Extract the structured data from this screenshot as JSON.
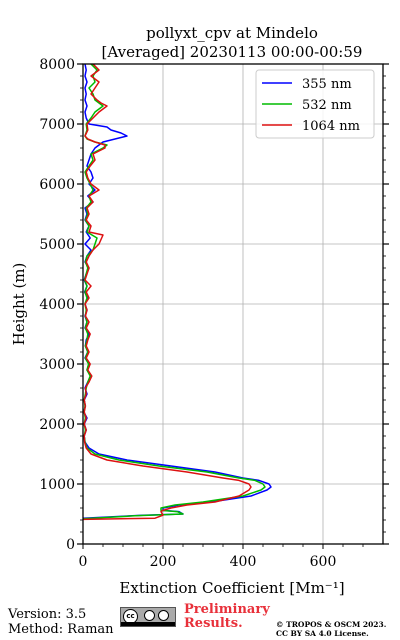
{
  "chart_data": {
    "type": "line",
    "title": "pollyxt_cpv at Mindelo",
    "subtitle": "[Averaged] 20230113 00:00-00:59",
    "xlabel": "Extinction Coefficient [Mm⁻¹]",
    "ylabel": "Height (m)",
    "xlim": [
      0,
      750
    ],
    "ylim": [
      0,
      8000
    ],
    "xticks": [
      0,
      200,
      400,
      600
    ],
    "yticks": [
      0,
      1000,
      2000,
      3000,
      4000,
      5000,
      6000,
      7000,
      8000
    ],
    "grid": true,
    "legend_position": "top-right",
    "series": [
      {
        "name": "355 nm",
        "color": "#0000ff",
        "points": [
          [
            0,
            430
          ],
          [
            150,
            480
          ],
          [
            250,
            500
          ],
          [
            240,
            540
          ],
          [
            200,
            560
          ],
          [
            200,
            600
          ],
          [
            240,
            650
          ],
          [
            320,
            700
          ],
          [
            420,
            800
          ],
          [
            460,
            900
          ],
          [
            470,
            950
          ],
          [
            465,
            1000
          ],
          [
            440,
            1060
          ],
          [
            400,
            1100
          ],
          [
            330,
            1200
          ],
          [
            220,
            1300
          ],
          [
            110,
            1400
          ],
          [
            40,
            1500
          ],
          [
            15,
            1600
          ],
          [
            5,
            1700
          ],
          [
            3,
            1800
          ],
          [
            8,
            1900
          ],
          [
            3,
            2000
          ],
          [
            10,
            2100
          ],
          [
            2,
            2200
          ],
          [
            6,
            2300
          ],
          [
            3,
            2400
          ],
          [
            10,
            2500
          ],
          [
            5,
            2600
          ],
          [
            12,
            2700
          ],
          [
            20,
            2800
          ],
          [
            10,
            2900
          ],
          [
            15,
            3000
          ],
          [
            5,
            3100
          ],
          [
            12,
            3200
          ],
          [
            6,
            3300
          ],
          [
            8,
            3400
          ],
          [
            15,
            3500
          ],
          [
            5,
            3600
          ],
          [
            10,
            3700
          ],
          [
            5,
            3800
          ],
          [
            10,
            3900
          ],
          [
            5,
            4000
          ],
          [
            12,
            4100
          ],
          [
            4,
            4200
          ],
          [
            10,
            4300
          ],
          [
            3,
            4400
          ],
          [
            8,
            4500
          ],
          [
            15,
            4600
          ],
          [
            5,
            4700
          ],
          [
            10,
            4800
          ],
          [
            20,
            4900
          ],
          [
            5,
            5000
          ],
          [
            18,
            5100
          ],
          [
            8,
            5200
          ],
          [
            15,
            5300
          ],
          [
            5,
            5400
          ],
          [
            10,
            5500
          ],
          [
            5,
            5600
          ],
          [
            25,
            5700
          ],
          [
            12,
            5800
          ],
          [
            30,
            5900
          ],
          [
            15,
            6000
          ],
          [
            25,
            6100
          ],
          [
            20,
            6200
          ],
          [
            10,
            6300
          ],
          [
            15,
            6400
          ],
          [
            20,
            6500
          ],
          [
            30,
            6600
          ],
          [
            50,
            6700
          ],
          [
            110,
            6800
          ],
          [
            95,
            6850
          ],
          [
            70,
            6900
          ],
          [
            60,
            6950
          ],
          [
            15,
            7000
          ],
          [
            8,
            7100
          ],
          [
            5,
            7200
          ],
          [
            10,
            7300
          ],
          [
            5,
            7400
          ],
          [
            8,
            7500
          ],
          [
            5,
            7600
          ],
          [
            10,
            7700
          ],
          [
            5,
            7800
          ],
          [
            8,
            7900
          ],
          [
            5,
            8000
          ]
        ]
      },
      {
        "name": "532 nm",
        "color": "#00bb00",
        "points": [
          [
            0,
            420
          ],
          [
            130,
            470
          ],
          [
            250,
            500
          ],
          [
            235,
            540
          ],
          [
            195,
            560
          ],
          [
            195,
            600
          ],
          [
            230,
            650
          ],
          [
            300,
            700
          ],
          [
            400,
            800
          ],
          [
            445,
            900
          ],
          [
            455,
            950
          ],
          [
            450,
            1000
          ],
          [
            430,
            1060
          ],
          [
            390,
            1100
          ],
          [
            310,
            1200
          ],
          [
            190,
            1300
          ],
          [
            90,
            1400
          ],
          [
            30,
            1500
          ],
          [
            10,
            1600
          ],
          [
            5,
            1700
          ],
          [
            3,
            1800
          ],
          [
            6,
            1900
          ],
          [
            3,
            2000
          ],
          [
            6,
            2100
          ],
          [
            3,
            2200
          ],
          [
            5,
            2300
          ],
          [
            3,
            2400
          ],
          [
            6,
            2500
          ],
          [
            8,
            2600
          ],
          [
            12,
            2700
          ],
          [
            18,
            2800
          ],
          [
            10,
            2900
          ],
          [
            14,
            3000
          ],
          [
            6,
            3100
          ],
          [
            12,
            3200
          ],
          [
            6,
            3300
          ],
          [
            10,
            3400
          ],
          [
            12,
            3500
          ],
          [
            6,
            3600
          ],
          [
            10,
            3700
          ],
          [
            6,
            3800
          ],
          [
            8,
            3900
          ],
          [
            5,
            4000
          ],
          [
            10,
            4100
          ],
          [
            5,
            4200
          ],
          [
            10,
            4300
          ],
          [
            4,
            4400
          ],
          [
            8,
            4500
          ],
          [
            12,
            4600
          ],
          [
            6,
            4700
          ],
          [
            10,
            4800
          ],
          [
            25,
            4900
          ],
          [
            30,
            5000
          ],
          [
            35,
            5100
          ],
          [
            10,
            5200
          ],
          [
            15,
            5300
          ],
          [
            6,
            5400
          ],
          [
            12,
            5500
          ],
          [
            8,
            5600
          ],
          [
            20,
            5700
          ],
          [
            15,
            5800
          ],
          [
            25,
            5900
          ],
          [
            18,
            6000
          ],
          [
            10,
            6100
          ],
          [
            5,
            6200
          ],
          [
            15,
            6300
          ],
          [
            25,
            6400
          ],
          [
            20,
            6500
          ],
          [
            50,
            6600
          ],
          [
            60,
            6650
          ],
          [
            30,
            6700
          ],
          [
            10,
            6750
          ],
          [
            5,
            6800
          ],
          [
            10,
            6900
          ],
          [
            8,
            7000
          ],
          [
            20,
            7100
          ],
          [
            30,
            7200
          ],
          [
            50,
            7300
          ],
          [
            40,
            7350
          ],
          [
            30,
            7400
          ],
          [
            25,
            7500
          ],
          [
            15,
            7600
          ],
          [
            30,
            7700
          ],
          [
            25,
            7800
          ],
          [
            35,
            7900
          ],
          [
            20,
            8000
          ]
        ]
      },
      {
        "name": "1064 nm",
        "color": "#dd1111",
        "points": [
          [
            0,
            410
          ],
          [
            180,
            430
          ],
          [
            200,
            480
          ],
          [
            195,
            540
          ],
          [
            200,
            560
          ],
          [
            220,
            600
          ],
          [
            260,
            650
          ],
          [
            330,
            700
          ],
          [
            390,
            800
          ],
          [
            415,
            900
          ],
          [
            420,
            950
          ],
          [
            415,
            1000
          ],
          [
            390,
            1060
          ],
          [
            350,
            1100
          ],
          [
            260,
            1200
          ],
          [
            150,
            1300
          ],
          [
            60,
            1400
          ],
          [
            20,
            1500
          ],
          [
            8,
            1600
          ],
          [
            4,
            1700
          ],
          [
            3,
            1800
          ],
          [
            8,
            1900
          ],
          [
            3,
            2000
          ],
          [
            8,
            2100
          ],
          [
            3,
            2200
          ],
          [
            6,
            2300
          ],
          [
            3,
            2400
          ],
          [
            8,
            2500
          ],
          [
            6,
            2600
          ],
          [
            15,
            2700
          ],
          [
            22,
            2800
          ],
          [
            12,
            2900
          ],
          [
            18,
            3000
          ],
          [
            8,
            3100
          ],
          [
            15,
            3200
          ],
          [
            8,
            3300
          ],
          [
            12,
            3400
          ],
          [
            18,
            3500
          ],
          [
            8,
            3600
          ],
          [
            15,
            3700
          ],
          [
            6,
            3800
          ],
          [
            10,
            3900
          ],
          [
            5,
            4000
          ],
          [
            15,
            4100
          ],
          [
            8,
            4200
          ],
          [
            20,
            4300
          ],
          [
            5,
            4400
          ],
          [
            10,
            4500
          ],
          [
            15,
            4600
          ],
          [
            8,
            4700
          ],
          [
            15,
            4800
          ],
          [
            25,
            4900
          ],
          [
            40,
            5000
          ],
          [
            50,
            5150
          ],
          [
            15,
            5200
          ],
          [
            20,
            5300
          ],
          [
            8,
            5400
          ],
          [
            15,
            5500
          ],
          [
            10,
            5600
          ],
          [
            25,
            5700
          ],
          [
            15,
            5800
          ],
          [
            40,
            5900
          ],
          [
            20,
            6000
          ],
          [
            12,
            6100
          ],
          [
            8,
            6200
          ],
          [
            18,
            6300
          ],
          [
            30,
            6400
          ],
          [
            25,
            6500
          ],
          [
            55,
            6600
          ],
          [
            55,
            6650
          ],
          [
            30,
            6700
          ],
          [
            12,
            6750
          ],
          [
            5,
            6800
          ],
          [
            12,
            6900
          ],
          [
            10,
            7000
          ],
          [
            25,
            7100
          ],
          [
            40,
            7200
          ],
          [
            60,
            7300
          ],
          [
            45,
            7350
          ],
          [
            35,
            7400
          ],
          [
            20,
            7500
          ],
          [
            30,
            7600
          ],
          [
            40,
            7700
          ],
          [
            20,
            7800
          ],
          [
            40,
            7900
          ],
          [
            25,
            8000
          ]
        ]
      }
    ]
  },
  "footer": {
    "version": "Version: 3.5",
    "method": "Method: Raman",
    "preliminary_line1": "Preliminary",
    "preliminary_line2": "Results.",
    "copyright_line1": "© TROPOS & OSCM 2023.",
    "copyright_line2": "CC BY SA 4.0 License.",
    "license_badge_icon": "cc-by-sa-icon"
  }
}
